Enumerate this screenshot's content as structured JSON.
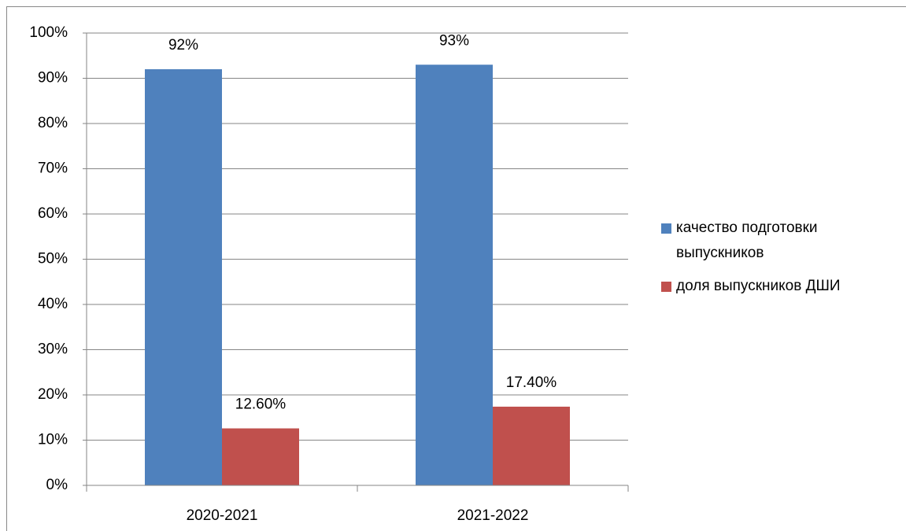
{
  "chart_data": {
    "type": "bar",
    "categories": [
      "2020-2021",
      "2021-2022"
    ],
    "series": [
      {
        "name": "качество подготовки выпускников",
        "color": "#4f81bd",
        "values": [
          92,
          93
        ],
        "value_labels": [
          "92%",
          "93%"
        ]
      },
      {
        "name": "доля выпускников ДШИ",
        "color": "#c0504d",
        "values": [
          12.6,
          17.4
        ],
        "value_labels": [
          "12.60%",
          "17.40%"
        ]
      }
    ],
    "ylim": [
      0,
      100
    ],
    "yticks": [
      {
        "value": 0,
        "label": "0%"
      },
      {
        "value": 10,
        "label": "10%"
      },
      {
        "value": 20,
        "label": "20%"
      },
      {
        "value": 30,
        "label": "30%"
      },
      {
        "value": 40,
        "label": "40%"
      },
      {
        "value": 50,
        "label": "50%"
      },
      {
        "value": 60,
        "label": "60%"
      },
      {
        "value": 70,
        "label": "70%"
      },
      {
        "value": 80,
        "label": "80%"
      },
      {
        "value": 90,
        "label": "90%"
      },
      {
        "value": 100,
        "label": "100%"
      }
    ],
    "grid": true,
    "legend": "right"
  }
}
